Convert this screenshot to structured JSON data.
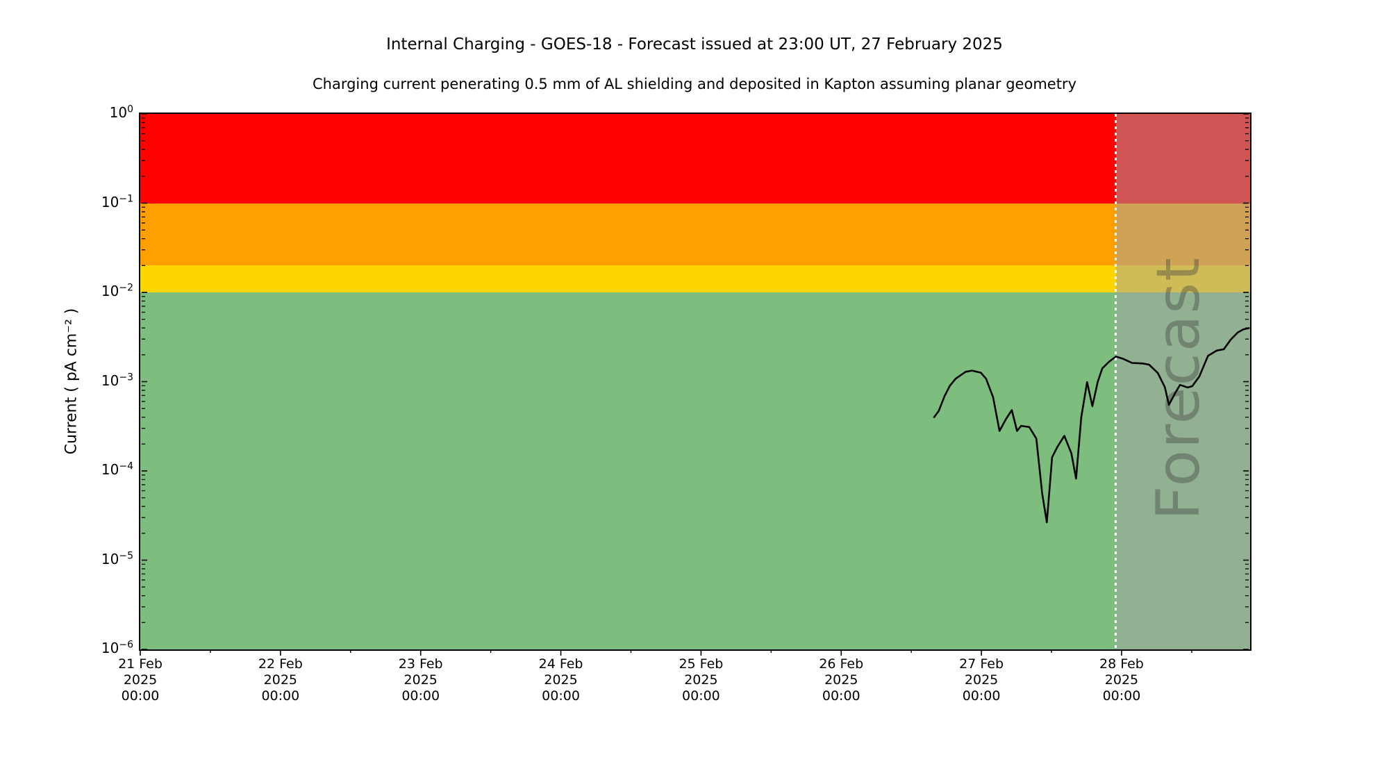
{
  "chart_data": {
    "type": "line",
    "title": "Internal Charging - GOES-18 - Forecast issued at 23:00 UT, 27 February 2025",
    "subtitle": "Charging current penerating 0.5 mm of AL shielding and deposited in Kapton assuming planar geometry",
    "ylabel": "Current ( pA cm⁻² )",
    "yscale": "log",
    "ylim": [
      1e-06,
      1
    ],
    "grid": false,
    "legend": "none",
    "x_axis": {
      "hours_total": 190,
      "major_tick_hours": 24,
      "minor_tick_hours": 12,
      "major_ticks": [
        {
          "hour": 0,
          "label_lines": [
            "21 Feb",
            "2025",
            "00:00"
          ]
        },
        {
          "hour": 24,
          "label_lines": [
            "22 Feb",
            "2025",
            "00:00"
          ]
        },
        {
          "hour": 48,
          "label_lines": [
            "23 Feb",
            "2025",
            "00:00"
          ]
        },
        {
          "hour": 72,
          "label_lines": [
            "24 Feb",
            "2025",
            "00:00"
          ]
        },
        {
          "hour": 96,
          "label_lines": [
            "25 Feb",
            "2025",
            "00:00"
          ]
        },
        {
          "hour": 120,
          "label_lines": [
            "26 Feb",
            "2025",
            "00:00"
          ]
        },
        {
          "hour": 144,
          "label_lines": [
            "27 Feb",
            "2025",
            "00:00"
          ]
        },
        {
          "hour": 168,
          "label_lines": [
            "28 Feb",
            "2025",
            "00:00"
          ]
        }
      ]
    },
    "y_axis": {
      "tick_exponents": [
        0,
        -1,
        -2,
        -3,
        -4,
        -5,
        -6
      ],
      "minus_sign": "−"
    },
    "bands": [
      {
        "name": "red",
        "from": 0.1,
        "to": 1,
        "color": "#ff0000"
      },
      {
        "name": "orange",
        "from": 0.02,
        "to": 0.1,
        "color": "#ffa000"
      },
      {
        "name": "yellow",
        "from": 0.01,
        "to": 0.02,
        "color": "#ffd500"
      },
      {
        "name": "green",
        "from": 1e-06,
        "to": 0.01,
        "color": "#7dbe7f"
      }
    ],
    "forecast": {
      "label": "Forecast",
      "start_hour": 167,
      "overlay_color": "rgba(164,164,164,0.52)",
      "divider_color": "#ffffff"
    },
    "series": [
      {
        "name": "charging-current",
        "color": "#000000",
        "points_hours_value": [
          [
            135.9,
            0.0004
          ],
          [
            136.7,
            0.00047
          ],
          [
            137.7,
            0.00069
          ],
          [
            138.6,
            0.0009
          ],
          [
            139.6,
            0.00108
          ],
          [
            141.3,
            0.00129
          ],
          [
            142.4,
            0.00133
          ],
          [
            143.9,
            0.00126
          ],
          [
            144.8,
            0.00108
          ],
          [
            146.0,
            0.00067
          ],
          [
            147.1,
            0.00028
          ],
          [
            148.2,
            0.00038
          ],
          [
            149.2,
            0.00048
          ],
          [
            150.1,
            0.00028
          ],
          [
            150.8,
            0.00032
          ],
          [
            152.2,
            0.00031
          ],
          [
            153.4,
            0.00023
          ],
          [
            154.4,
            5.6e-05
          ],
          [
            155.2,
            2.65e-05
          ],
          [
            156.1,
            0.000142
          ],
          [
            157.0,
            0.000186
          ],
          [
            158.2,
            0.000247
          ],
          [
            159.4,
            0.000158
          ],
          [
            160.2,
            8.2e-05
          ],
          [
            161.1,
            0.0004
          ],
          [
            162.1,
            0.00099
          ],
          [
            163.0,
            0.00053
          ],
          [
            163.9,
            0.00099
          ],
          [
            164.7,
            0.00141
          ],
          [
            165.9,
            0.00168
          ],
          [
            167.0,
            0.00191
          ],
          [
            168.2,
            0.00181
          ],
          [
            169.8,
            0.00162
          ],
          [
            171.6,
            0.0016
          ],
          [
            172.7,
            0.00155
          ],
          [
            174.2,
            0.00125
          ],
          [
            175.4,
            0.00087
          ],
          [
            176.1,
            0.00055
          ],
          [
            177.2,
            0.00075
          ],
          [
            178.0,
            0.00092
          ],
          [
            179.3,
            0.00086
          ],
          [
            180.1,
            0.00089
          ],
          [
            181.3,
            0.00114
          ],
          [
            182.8,
            0.00195
          ],
          [
            184.3,
            0.00223
          ],
          [
            185.5,
            0.00231
          ],
          [
            186.7,
            0.00296
          ],
          [
            187.9,
            0.00356
          ],
          [
            188.8,
            0.00384
          ],
          [
            189.8,
            0.00398
          ]
        ]
      }
    ]
  }
}
